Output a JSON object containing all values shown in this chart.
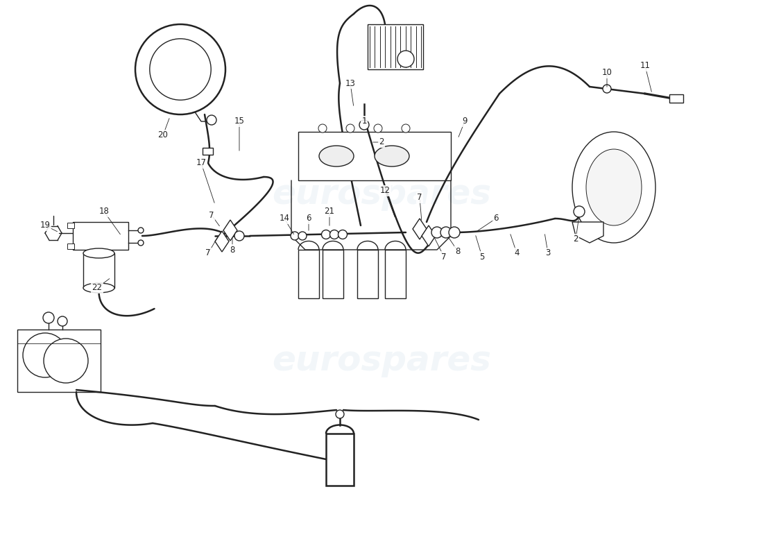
{
  "bg_color": "#ffffff",
  "line_color": "#222222",
  "wm_color1": "#b8cfe0",
  "wm_color2": "#c5d8ea",
  "wm_text": "eurospares"
}
